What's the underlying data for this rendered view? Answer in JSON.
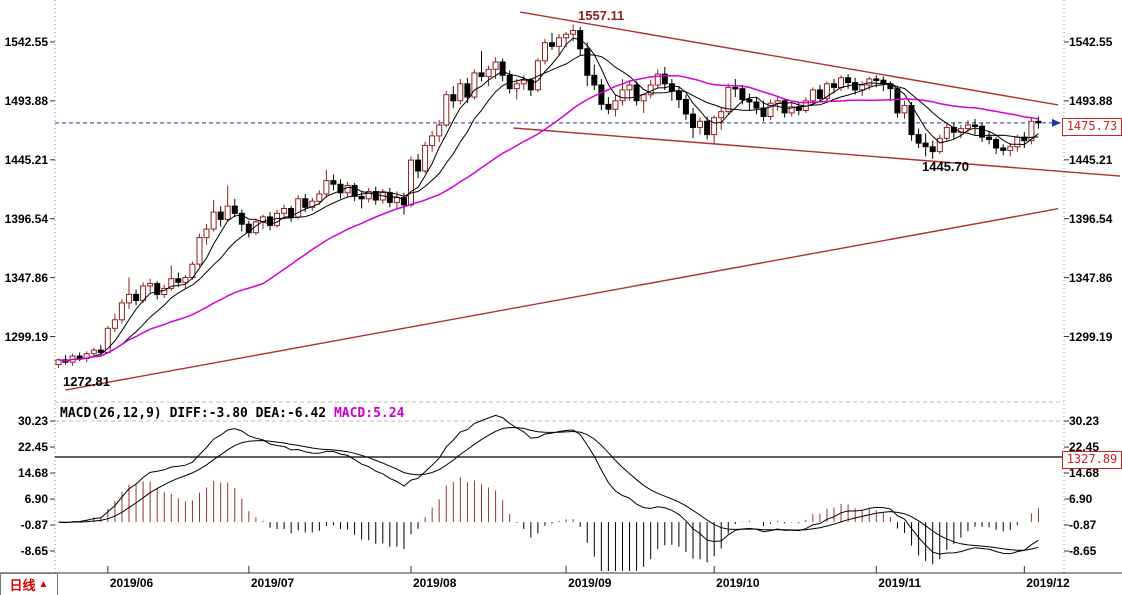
{
  "window": {
    "period_label": "日线",
    "period_arrow": "▲"
  },
  "price_axis": {
    "labels": [
      "1542.55",
      "1493.88",
      "1445.21",
      "1396.54",
      "1347.86",
      "1299.19"
    ],
    "values": [
      1542.55,
      1493.88,
      1445.21,
      1396.54,
      1347.86,
      1299.19
    ]
  },
  "macd_axis": {
    "labels": [
      "30.23",
      "22.45",
      "14.68",
      "6.90",
      "-0.87",
      "-8.65"
    ],
    "values": [
      30.23,
      22.45,
      14.68,
      6.9,
      -0.87,
      -8.65
    ]
  },
  "x_axis": {
    "labels": [
      "2019/06",
      "2019/07",
      "2019/08",
      "2019/09",
      "2019/10",
      "2019/11",
      "2019/12"
    ],
    "candle_indices": [
      7,
      27,
      50,
      72,
      93,
      116,
      137
    ]
  },
  "annotations": {
    "peak": "1557.11",
    "start_low": "1272.81",
    "swing_low": "1445.70",
    "last_price": "1475.73",
    "macd_hline_label": "1327.89"
  },
  "macd_header": {
    "formula": "MACD(26,12,9)",
    "diff": " DIFF:-3.80",
    "dea": " DEA:-6.42",
    "macd": " MACD:5.24"
  },
  "colors": {
    "up_candle": "#8b2222",
    "down_candle": "#000000",
    "ma_fast": "#000000",
    "ma_slow": "#000000",
    "ma_long": "#d400d4",
    "trendline": "#b03030",
    "current_price_line": "#2233aa",
    "hist_pos": "#993333",
    "hist_neg": "#000000",
    "tag_red": "#cc2222",
    "grid_dash": "#bbbbbb",
    "border_dot": "#888888"
  },
  "chart_data": {
    "type": "candlestick",
    "timeframe": "daily",
    "ohlc_note": "approx OHLC per bar, late May 2019 - early Dec 2019",
    "candles": [
      [
        1276,
        1281,
        1273,
        1280
      ],
      [
        1280,
        1284,
        1276,
        1278
      ],
      [
        1278,
        1285,
        1275,
        1283
      ],
      [
        1283,
        1286,
        1279,
        1281
      ],
      [
        1281,
        1287,
        1278,
        1285
      ],
      [
        1285,
        1290,
        1282,
        1288
      ],
      [
        1288,
        1292,
        1284,
        1286
      ],
      [
        1286,
        1308,
        1285,
        1306
      ],
      [
        1306,
        1318,
        1303,
        1313
      ],
      [
        1313,
        1330,
        1310,
        1327
      ],
      [
        1327,
        1348,
        1322,
        1334
      ],
      [
        1334,
        1338,
        1325,
        1329
      ],
      [
        1329,
        1344,
        1327,
        1341
      ],
      [
        1341,
        1347,
        1335,
        1343
      ],
      [
        1343,
        1345,
        1330,
        1334
      ],
      [
        1334,
        1342,
        1331,
        1339
      ],
      [
        1339,
        1358,
        1337,
        1347
      ],
      [
        1347,
        1352,
        1340,
        1344
      ],
      [
        1344,
        1350,
        1339,
        1348
      ],
      [
        1348,
        1361,
        1346,
        1359
      ],
      [
        1359,
        1384,
        1357,
        1381
      ],
      [
        1381,
        1392,
        1375,
        1388
      ],
      [
        1388,
        1412,
        1386,
        1402
      ],
      [
        1402,
        1407,
        1390,
        1396
      ],
      [
        1396,
        1424,
        1394,
        1407
      ],
      [
        1407,
        1413,
        1398,
        1401
      ],
      [
        1401,
        1404,
        1386,
        1392
      ],
      [
        1392,
        1395,
        1381,
        1385
      ],
      [
        1385,
        1397,
        1383,
        1394
      ],
      [
        1394,
        1400,
        1388,
        1398
      ],
      [
        1398,
        1402,
        1387,
        1391
      ],
      [
        1391,
        1404,
        1389,
        1401
      ],
      [
        1401,
        1408,
        1396,
        1405
      ],
      [
        1405,
        1407,
        1394,
        1398
      ],
      [
        1398,
        1416,
        1396,
        1413
      ],
      [
        1413,
        1417,
        1402,
        1406
      ],
      [
        1406,
        1414,
        1403,
        1411
      ],
      [
        1411,
        1420,
        1408,
        1417
      ],
      [
        1417,
        1437,
        1414,
        1428
      ],
      [
        1428,
        1433,
        1420,
        1425
      ],
      [
        1425,
        1429,
        1413,
        1418
      ],
      [
        1418,
        1427,
        1415,
        1424
      ],
      [
        1424,
        1426,
        1411,
        1415
      ],
      [
        1415,
        1419,
        1405,
        1413
      ],
      [
        1413,
        1422,
        1410,
        1419
      ],
      [
        1419,
        1423,
        1408,
        1412
      ],
      [
        1412,
        1421,
        1409,
        1418
      ],
      [
        1418,
        1422,
        1406,
        1410
      ],
      [
        1410,
        1419,
        1404,
        1414
      ],
      [
        1414,
        1418,
        1400,
        1408
      ],
      [
        1408,
        1448,
        1406,
        1445
      ],
      [
        1445,
        1450,
        1430,
        1436
      ],
      [
        1436,
        1460,
        1434,
        1457
      ],
      [
        1457,
        1469,
        1452,
        1465
      ],
      [
        1465,
        1478,
        1460,
        1474
      ],
      [
        1474,
        1502,
        1472,
        1499
      ],
      [
        1499,
        1506,
        1488,
        1494
      ],
      [
        1494,
        1512,
        1491,
        1508
      ],
      [
        1508,
        1513,
        1492,
        1497
      ],
      [
        1497,
        1520,
        1495,
        1517
      ],
      [
        1517,
        1535,
        1510,
        1514
      ],
      [
        1514,
        1523,
        1506,
        1520
      ],
      [
        1520,
        1530,
        1512,
        1526
      ],
      [
        1526,
        1529,
        1510,
        1515
      ],
      [
        1515,
        1519,
        1500,
        1504
      ],
      [
        1504,
        1512,
        1495,
        1508
      ],
      [
        1508,
        1515,
        1503,
        1511
      ],
      [
        1511,
        1513,
        1498,
        1503
      ],
      [
        1503,
        1529,
        1501,
        1527
      ],
      [
        1527,
        1545,
        1524,
        1542
      ],
      [
        1542,
        1550,
        1536,
        1539
      ],
      [
        1539,
        1549,
        1532,
        1546
      ],
      [
        1546,
        1551,
        1538,
        1549
      ],
      [
        1549,
        1557,
        1543,
        1552
      ],
      [
        1552,
        1555,
        1532,
        1537
      ],
      [
        1537,
        1542,
        1506,
        1515
      ],
      [
        1515,
        1524,
        1503,
        1507
      ],
      [
        1507,
        1512,
        1486,
        1491
      ],
      [
        1491,
        1497,
        1483,
        1487
      ],
      [
        1487,
        1499,
        1481,
        1494
      ],
      [
        1494,
        1512,
        1490,
        1503
      ],
      [
        1503,
        1511,
        1494,
        1507
      ],
      [
        1507,
        1510,
        1490,
        1494
      ],
      [
        1494,
        1500,
        1484,
        1499
      ],
      [
        1499,
        1511,
        1496,
        1507
      ],
      [
        1507,
        1520,
        1504,
        1516
      ],
      [
        1516,
        1522,
        1503,
        1508
      ],
      [
        1508,
        1512,
        1494,
        1502
      ],
      [
        1502,
        1506,
        1488,
        1495
      ],
      [
        1495,
        1499,
        1478,
        1483
      ],
      [
        1483,
        1488,
        1463,
        1472
      ],
      [
        1472,
        1480,
        1466,
        1477
      ],
      [
        1477,
        1481,
        1462,
        1466
      ],
      [
        1466,
        1482,
        1458,
        1480
      ],
      [
        1480,
        1488,
        1470,
        1485
      ],
      [
        1485,
        1508,
        1483,
        1505
      ],
      [
        1505,
        1512,
        1497,
        1504
      ],
      [
        1504,
        1507,
        1491,
        1495
      ],
      [
        1495,
        1500,
        1486,
        1493
      ],
      [
        1493,
        1497,
        1483,
        1488
      ],
      [
        1488,
        1494,
        1477,
        1481
      ],
      [
        1481,
        1495,
        1478,
        1492
      ],
      [
        1492,
        1498,
        1486,
        1494
      ],
      [
        1494,
        1496,
        1480,
        1484
      ],
      [
        1484,
        1492,
        1481,
        1489
      ],
      [
        1489,
        1493,
        1482,
        1486
      ],
      [
        1486,
        1497,
        1484,
        1494
      ],
      [
        1494,
        1505,
        1490,
        1503
      ],
      [
        1503,
        1507,
        1493,
        1496
      ],
      [
        1496,
        1510,
        1494,
        1508
      ],
      [
        1508,
        1512,
        1500,
        1505
      ],
      [
        1505,
        1515,
        1502,
        1513
      ],
      [
        1513,
        1516,
        1504,
        1509
      ],
      [
        1509,
        1513,
        1499,
        1503
      ],
      [
        1503,
        1510,
        1498,
        1507
      ],
      [
        1507,
        1514,
        1503,
        1512
      ],
      [
        1512,
        1515,
        1505,
        1511
      ],
      [
        1511,
        1514,
        1502,
        1508
      ],
      [
        1508,
        1510,
        1494,
        1504
      ],
      [
        1504,
        1506,
        1480,
        1484
      ],
      [
        1484,
        1494,
        1479,
        1490
      ],
      [
        1490,
        1493,
        1461,
        1466
      ],
      [
        1466,
        1471,
        1455,
        1459
      ],
      [
        1459,
        1467,
        1448,
        1456
      ],
      [
        1456,
        1461,
        1446,
        1452
      ],
      [
        1452,
        1466,
        1450,
        1463
      ],
      [
        1463,
        1475,
        1460,
        1472
      ],
      [
        1472,
        1476,
        1462,
        1468
      ],
      [
        1468,
        1474,
        1463,
        1471
      ],
      [
        1471,
        1478,
        1468,
        1474
      ],
      [
        1474,
        1479,
        1466,
        1473
      ],
      [
        1473,
        1476,
        1460,
        1464
      ],
      [
        1464,
        1469,
        1458,
        1462
      ],
      [
        1462,
        1464,
        1450,
        1455
      ],
      [
        1455,
        1458,
        1449,
        1453
      ],
      [
        1453,
        1459,
        1448,
        1456
      ],
      [
        1456,
        1466,
        1452,
        1464
      ],
      [
        1464,
        1468,
        1455,
        1461
      ],
      [
        1461,
        1480,
        1458,
        1477
      ],
      [
        1477,
        1481,
        1471,
        1476
      ]
    ],
    "ma_windows": [
      5,
      10,
      30
    ],
    "macd_params": [
      26,
      12,
      9
    ],
    "macd_last": {
      "diff": -3.8,
      "dea": -6.42,
      "macd": 5.24
    },
    "last_price": 1475.73,
    "price_high_annotation": 1557.11,
    "price_low_annotation": 1272.81,
    "swing_low_annotation": 1445.7,
    "price_lines": [
      {
        "price": 1475.73,
        "style": "dashed"
      }
    ],
    "macd_hlines": [
      {
        "value": 19.47,
        "label": "1327.89"
      }
    ],
    "trendlines": [
      {
        "name": "upper-resistance",
        "i1": 65.5,
        "p1": 1567.3,
        "i2": 141.8,
        "p2": 1490.5
      },
      {
        "name": "lower-support",
        "i1": 64.5,
        "p1": 1471.5,
        "i2": 150.6,
        "p2": 1431.8
      },
      {
        "name": "long-term-support",
        "i1": 1.0,
        "p1": 1255.0,
        "i2": 141.8,
        "p2": 1404.8
      }
    ]
  }
}
